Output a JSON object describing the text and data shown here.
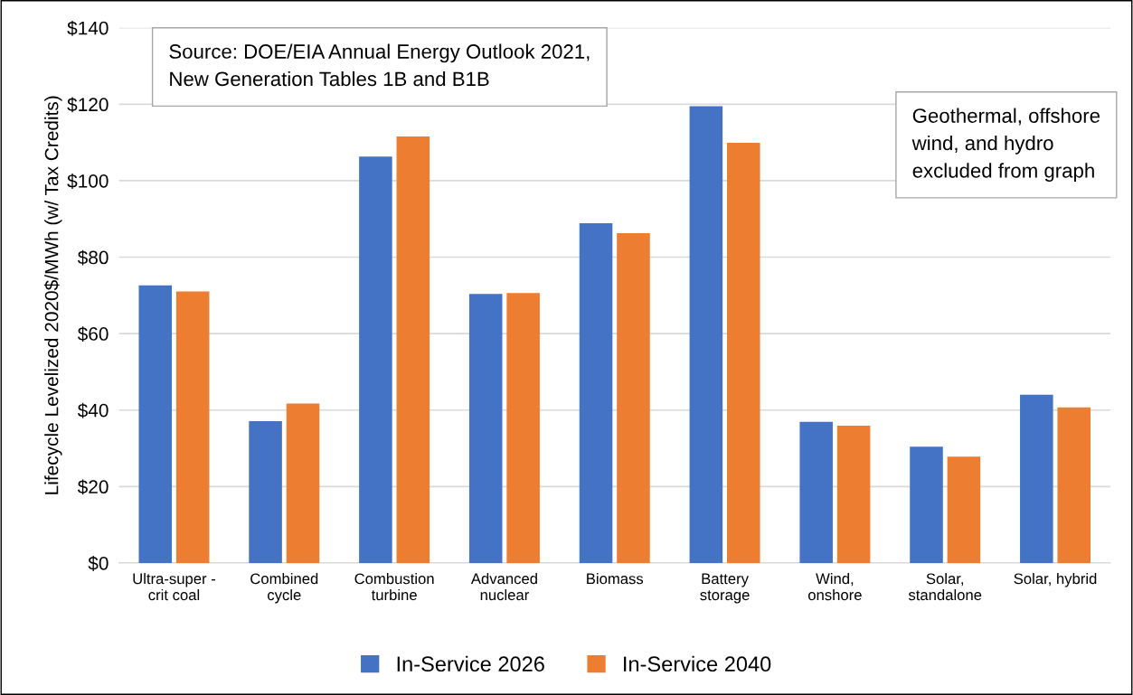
{
  "chart_data": {
    "type": "bar",
    "ylabel": "Lifecycle Levelized 2020$/MWh (w/ Tax Credits)",
    "categories": [
      "Ultra-super -\ncrit coal",
      "Combined\ncycle",
      "Combustion\nturbine",
      "Advanced\nnuclear",
      "Biomass",
      "Battery\nstorage",
      "Wind,\nonshore",
      "Solar,\nstandalone",
      "Solar, hybrid"
    ],
    "series": [
      {
        "name": "In-Service 2026",
        "color": "#4472c4",
        "values": [
          72.6,
          37.1,
          106.3,
          70.4,
          88.9,
          119.5,
          36.9,
          30.4,
          44.0
        ]
      },
      {
        "name": "In-Service 2040",
        "color": "#ed7d31",
        "values": [
          71.0,
          41.7,
          111.6,
          70.6,
          86.3,
          109.9,
          35.9,
          27.8,
          40.7
        ]
      }
    ],
    "ylim": [
      0,
      140
    ],
    "yticks": [
      {
        "value": 0,
        "label": "$0"
      },
      {
        "value": 20,
        "label": "$20"
      },
      {
        "value": 40,
        "label": "$40"
      },
      {
        "value": 60,
        "label": "$60"
      },
      {
        "value": 80,
        "label": "$80"
      },
      {
        "value": 100,
        "label": "$100"
      },
      {
        "value": 120,
        "label": "$120"
      },
      {
        "value": 140,
        "label": "$140"
      }
    ],
    "grid": "y",
    "legend": "bottom",
    "annotations": [
      "Source: DOE/EIA Annual Energy Outlook 2021,\nNew Generation Tables 1B and B1B",
      "Geothermal, offshore\nwind, and hydro\nexcluded from graph"
    ]
  }
}
